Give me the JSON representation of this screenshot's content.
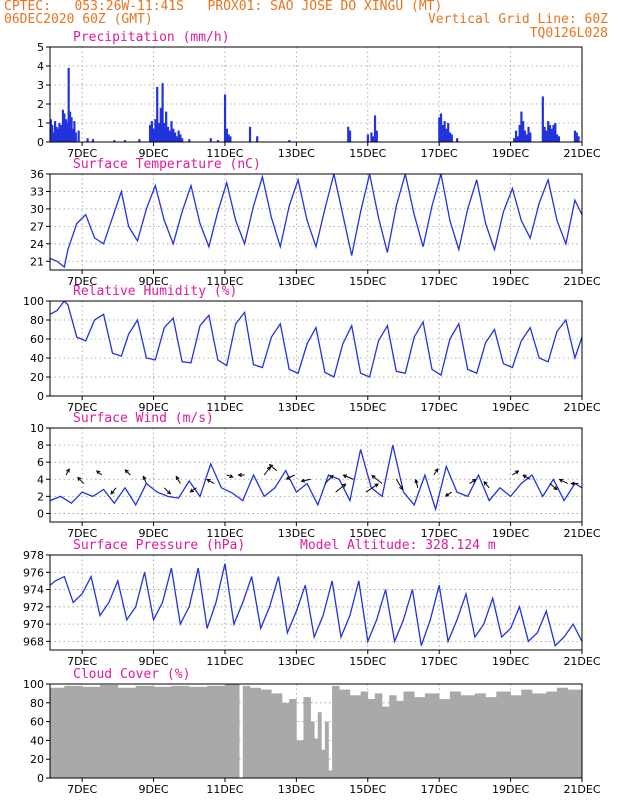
{
  "header": {
    "line1": "CPTEC:   053:26W-11:41S   PROX01: SAO JOSE DO XINGU (MT)",
    "line2_left": "06DEC2020 60Z (GMT)",
    "line2_right": "Vertical Grid Line: 60Z",
    "line3_right": "TQ0126L028"
  },
  "colors": {
    "header": "#e8741e",
    "title": "#e01b9a",
    "series": "#2233dd",
    "cloud": "#a9a9a9",
    "arrow": "#000000",
    "grid": "#9a9a9a"
  },
  "chart_data": [
    {
      "id": "precip",
      "type": "bar",
      "title": "Precipitation (mm/h)",
      "ylim": [
        0,
        5
      ],
      "yticks": [
        0,
        1,
        2,
        3,
        4,
        5
      ],
      "xlim": [
        6.1,
        21.0
      ],
      "xticks": [
        "7DEC",
        "9DEC",
        "11DEC",
        "13DEC",
        "15DEC",
        "17DEC",
        "19DEC",
        "21DEC"
      ],
      "x": [
        6.12,
        6.16,
        6.2,
        6.24,
        6.28,
        6.32,
        6.36,
        6.42,
        6.46,
        6.5,
        6.55,
        6.58,
        6.62,
        6.66,
        6.7,
        6.74,
        6.78,
        6.82,
        6.9,
        7.15,
        7.3,
        7.9,
        8.2,
        8.6,
        8.9,
        8.95,
        9.0,
        9.05,
        9.1,
        9.15,
        9.2,
        9.25,
        9.3,
        9.35,
        9.4,
        9.45,
        9.5,
        9.55,
        9.6,
        9.65,
        9.7,
        9.75,
        9.8,
        10.0,
        10.6,
        10.8,
        11.0,
        11.05,
        11.1,
        11.15,
        11.7,
        11.9,
        12.8,
        14.45,
        14.5,
        15.0,
        15.1,
        15.15,
        15.2,
        15.25,
        17.0,
        17.05,
        17.1,
        17.15,
        17.2,
        17.25,
        17.3,
        17.35,
        17.5,
        19.1,
        19.15,
        19.2,
        19.25,
        19.3,
        19.35,
        19.4,
        19.45,
        19.5,
        19.55,
        19.9,
        19.95,
        20.0,
        20.05,
        20.1,
        20.15,
        20.2,
        20.25,
        20.3,
        20.35,
        20.8,
        20.85,
        20.9
      ],
      "values": [
        1.2,
        0.9,
        0.5,
        1.1,
        0.8,
        0.7,
        1.0,
        0.9,
        1.7,
        1.5,
        1.2,
        1.0,
        3.9,
        1.6,
        1.3,
        0.7,
        1.1,
        0.5,
        0.6,
        0.2,
        0.15,
        0.1,
        0.1,
        0.15,
        0.9,
        1.1,
        0.7,
        1.2,
        2.9,
        1.0,
        1.8,
        3.1,
        1.0,
        1.6,
        0.8,
        0.6,
        1.1,
        0.7,
        0.5,
        0.3,
        0.6,
        0.4,
        0.2,
        0.15,
        0.2,
        0.1,
        2.5,
        0.7,
        0.4,
        0.3,
        0.8,
        0.3,
        0.1,
        0.8,
        0.6,
        0.4,
        0.5,
        0.3,
        1.4,
        0.6,
        1.3,
        1.5,
        0.9,
        1.1,
        0.7,
        1.0,
        0.5,
        0.4,
        0.2,
        0.2,
        0.6,
        0.3,
        0.9,
        1.6,
        1.1,
        0.6,
        0.4,
        0.8,
        0.5,
        2.4,
        0.8,
        0.6,
        1.1,
        0.9,
        0.7,
        0.9,
        1.0,
        0.4,
        0.3,
        0.6,
        0.5,
        0.3
      ]
    },
    {
      "id": "temp",
      "type": "line",
      "title": "Surface Temperature (nC)",
      "ylim": [
        19.5,
        36
      ],
      "yticks": [
        21,
        24,
        27,
        30,
        33,
        36
      ],
      "xlim": [
        6.1,
        21.0
      ],
      "xticks": [
        "7DEC",
        "9DEC",
        "11DEC",
        "13DEC",
        "15DEC",
        "17DEC",
        "19DEC",
        "21DEC"
      ],
      "x": [
        6.1,
        6.3,
        6.5,
        6.6,
        6.85,
        7.1,
        7.35,
        7.6,
        7.85,
        8.1,
        8.3,
        8.55,
        8.8,
        9.05,
        9.3,
        9.55,
        9.8,
        10.05,
        10.3,
        10.55,
        10.8,
        11.05,
        11.3,
        11.55,
        11.8,
        12.05,
        12.3,
        12.55,
        12.8,
        13.05,
        13.3,
        13.55,
        13.8,
        14.05,
        14.3,
        14.55,
        14.8,
        15.05,
        15.3,
        15.55,
        15.8,
        16.05,
        16.3,
        16.55,
        16.8,
        17.05,
        17.3,
        17.55,
        17.8,
        18.05,
        18.3,
        18.55,
        18.8,
        19.05,
        19.3,
        19.55,
        19.8,
        20.05,
        20.3,
        20.55,
        20.8,
        21.0
      ],
      "values": [
        21.5,
        21.0,
        20.0,
        23.0,
        27.5,
        29.0,
        25.0,
        24.0,
        28.5,
        33.0,
        27.0,
        24.5,
        30.0,
        34.0,
        28.0,
        24.0,
        29.5,
        34.0,
        27.5,
        23.5,
        29.5,
        34.5,
        28.0,
        24.0,
        30.5,
        35.5,
        28.5,
        23.5,
        30.5,
        35.0,
        28.0,
        23.5,
        30.0,
        36.0,
        29.0,
        22.0,
        29.5,
        36.0,
        28.5,
        22.5,
        30.5,
        36.0,
        29.0,
        23.5,
        30.5,
        36.0,
        28.0,
        23.0,
        30.0,
        35.0,
        27.5,
        23.0,
        29.5,
        33.5,
        28.0,
        25.0,
        31.0,
        35.0,
        28.0,
        24.0,
        31.5,
        29.0
      ]
    },
    {
      "id": "rh",
      "type": "line",
      "title": "Relative Humidity (%)",
      "ylim": [
        0,
        100
      ],
      "yticks": [
        0,
        20,
        40,
        60,
        80,
        100
      ],
      "xlim": [
        6.1,
        21.0
      ],
      "xticks": [
        "7DEC",
        "9DEC",
        "11DEC",
        "13DEC",
        "15DEC",
        "17DEC",
        "19DEC",
        "21DEC"
      ],
      "x": [
        6.1,
        6.3,
        6.5,
        6.6,
        6.85,
        7.1,
        7.35,
        7.6,
        7.85,
        8.1,
        8.3,
        8.55,
        8.8,
        9.05,
        9.3,
        9.55,
        9.8,
        10.05,
        10.3,
        10.55,
        10.8,
        11.05,
        11.3,
        11.55,
        11.8,
        12.05,
        12.3,
        12.55,
        12.8,
        13.05,
        13.3,
        13.55,
        13.8,
        14.05,
        14.3,
        14.55,
        14.8,
        15.05,
        15.3,
        15.55,
        15.8,
        16.05,
        16.3,
        16.55,
        16.8,
        17.05,
        17.3,
        17.55,
        17.8,
        18.05,
        18.3,
        18.55,
        18.8,
        19.05,
        19.3,
        19.55,
        19.8,
        20.05,
        20.3,
        20.55,
        20.8,
        21.0
      ],
      "values": [
        86,
        90,
        100,
        96,
        62,
        58,
        80,
        86,
        45,
        42,
        65,
        80,
        40,
        38,
        72,
        82,
        36,
        35,
        74,
        85,
        38,
        32,
        76,
        88,
        33,
        30,
        62,
        76,
        28,
        24,
        55,
        72,
        25,
        20,
        55,
        74,
        24,
        20,
        58,
        74,
        26,
        24,
        62,
        78,
        28,
        22,
        60,
        76,
        28,
        24,
        56,
        70,
        34,
        30,
        58,
        72,
        40,
        36,
        68,
        80,
        40,
        62
      ]
    },
    {
      "id": "wind",
      "type": "line",
      "title": "Surface Wind (m/s)",
      "ylim": [
        -1,
        10
      ],
      "yticks": [
        0,
        2,
        4,
        6,
        8,
        10
      ],
      "xlim": [
        6.1,
        21.0
      ],
      "xticks": [
        "7DEC",
        "9DEC",
        "11DEC",
        "13DEC",
        "15DEC",
        "17DEC",
        "19DEC",
        "21DEC"
      ],
      "x": [
        6.1,
        6.4,
        6.7,
        7.0,
        7.3,
        7.6,
        7.9,
        8.2,
        8.5,
        8.8,
        9.1,
        9.4,
        9.7,
        10.0,
        10.3,
        10.6,
        10.9,
        11.2,
        11.5,
        11.8,
        12.1,
        12.4,
        12.7,
        13.0,
        13.3,
        13.6,
        13.9,
        14.2,
        14.5,
        14.8,
        15.1,
        15.4,
        15.7,
        16.0,
        16.3,
        16.6,
        16.9,
        17.2,
        17.5,
        17.8,
        18.1,
        18.4,
        18.7,
        19.0,
        19.3,
        19.6,
        19.9,
        20.2,
        20.5,
        20.8,
        21.0
      ],
      "values": [
        1.5,
        2.0,
        1.2,
        2.5,
        2.0,
        2.8,
        1.2,
        3.0,
        1.0,
        3.5,
        2.5,
        2.0,
        1.8,
        3.8,
        2.0,
        5.8,
        3.0,
        2.4,
        1.5,
        4.5,
        2.0,
        3.0,
        5.0,
        2.5,
        3.5,
        1.0,
        4.5,
        4.0,
        1.5,
        7.5,
        3.0,
        2.0,
        8.0,
        2.5,
        1.0,
        4.5,
        0.5,
        5.5,
        2.5,
        2.0,
        4.5,
        1.5,
        3.0,
        2.0,
        3.5,
        4.5,
        2.0,
        4.0,
        1.5,
        3.5,
        3.0
      ],
      "arrows": [
        {
          "x": 6.55,
          "y": 4.5,
          "dx": 3,
          "dy": -6
        },
        {
          "x": 7.05,
          "y": 3.5,
          "dx": -6,
          "dy": -6
        },
        {
          "x": 7.55,
          "y": 4.5,
          "dx": -5,
          "dy": -4
        },
        {
          "x": 7.95,
          "y": 3.0,
          "dx": -5,
          "dy": 6
        },
        {
          "x": 8.35,
          "y": 4.5,
          "dx": -5,
          "dy": -5
        },
        {
          "x": 8.8,
          "y": 3.5,
          "dx": -3,
          "dy": -7
        },
        {
          "x": 9.3,
          "y": 3.0,
          "dx": 6,
          "dy": 6
        },
        {
          "x": 9.75,
          "y": 3.5,
          "dx": -4,
          "dy": -7
        },
        {
          "x": 10.2,
          "y": 3.0,
          "dx": -6,
          "dy": 4
        },
        {
          "x": 10.7,
          "y": 3.5,
          "dx": -7,
          "dy": -4
        },
        {
          "x": 11.05,
          "y": 4.5,
          "dx": 6,
          "dy": 2
        },
        {
          "x": 11.55,
          "y": 4.5,
          "dx": -6,
          "dy": 0
        },
        {
          "x": 12.1,
          "y": 4.5,
          "dx": 6,
          "dy": -8
        },
        {
          "x": 12.45,
          "y": 5.0,
          "dx": -7,
          "dy": -6
        },
        {
          "x": 12.95,
          "y": 4.5,
          "dx": -8,
          "dy": 4
        },
        {
          "x": 13.4,
          "y": 4.0,
          "dx": -9,
          "dy": 2
        },
        {
          "x": 13.8,
          "y": 3.5,
          "dx": 8,
          "dy": -8
        },
        {
          "x": 14.1,
          "y": 2.5,
          "dx": 10,
          "dy": -8
        },
        {
          "x": 14.6,
          "y": 4.0,
          "dx": -10,
          "dy": -4
        },
        {
          "x": 14.95,
          "y": 2.5,
          "dx": 12,
          "dy": -8
        },
        {
          "x": 15.4,
          "y": 3.5,
          "dx": -10,
          "dy": -8
        },
        {
          "x": 15.8,
          "y": 4.0,
          "dx": 6,
          "dy": 10
        },
        {
          "x": 16.4,
          "y": 3.0,
          "dx": -2,
          "dy": -8
        },
        {
          "x": 16.85,
          "y": 4.5,
          "dx": 4,
          "dy": -6
        },
        {
          "x": 17.35,
          "y": 2.5,
          "dx": -6,
          "dy": 4
        },
        {
          "x": 17.85,
          "y": 3.5,
          "dx": 6,
          "dy": -4
        },
        {
          "x": 18.4,
          "y": 3.0,
          "dx": -5,
          "dy": -6
        },
        {
          "x": 19.05,
          "y": 4.5,
          "dx": 6,
          "dy": -4
        },
        {
          "x": 19.55,
          "y": 4.0,
          "dx": -7,
          "dy": -4
        },
        {
          "x": 20.1,
          "y": 3.5,
          "dx": 7,
          "dy": 6
        },
        {
          "x": 20.6,
          "y": 3.5,
          "dx": -8,
          "dy": -4
        },
        {
          "x": 20.9,
          "y": 3.5,
          "dx": -7,
          "dy": 0
        }
      ]
    },
    {
      "id": "pres",
      "type": "line",
      "title": "Surface Pressure (hPa)",
      "annotation": "Model Altitude: 328.124 m",
      "ylim": [
        967,
        978
      ],
      "yticks": [
        968,
        970,
        972,
        974,
        976,
        978
      ],
      "xlim": [
        6.1,
        21.0
      ],
      "xticks": [
        "7DEC",
        "9DEC",
        "11DEC",
        "13DEC",
        "15DEC",
        "17DEC",
        "19DEC",
        "21DEC"
      ],
      "x": [
        6.1,
        6.25,
        6.5,
        6.75,
        7.0,
        7.25,
        7.5,
        7.75,
        8.0,
        8.25,
        8.5,
        8.75,
        9.0,
        9.25,
        9.5,
        9.75,
        10.0,
        10.25,
        10.5,
        10.75,
        11.0,
        11.25,
        11.5,
        11.75,
        12.0,
        12.25,
        12.5,
        12.75,
        13.0,
        13.25,
        13.5,
        13.75,
        14.0,
        14.25,
        14.5,
        14.75,
        15.0,
        15.25,
        15.5,
        15.75,
        16.0,
        16.25,
        16.5,
        16.75,
        17.0,
        17.25,
        17.5,
        17.75,
        18.0,
        18.25,
        18.5,
        18.75,
        19.0,
        19.25,
        19.5,
        19.75,
        20.0,
        20.25,
        20.5,
        20.75,
        21.0
      ],
      "values": [
        974.5,
        975.0,
        975.5,
        972.5,
        973.5,
        975.5,
        971.0,
        972.5,
        975.0,
        970.5,
        972.0,
        976.0,
        970.5,
        972.5,
        976.5,
        970.0,
        972.0,
        976.5,
        969.5,
        972.5,
        977.0,
        970.0,
        972.5,
        975.5,
        969.5,
        972.0,
        975.5,
        969.0,
        971.5,
        974.5,
        968.5,
        971.0,
        975.0,
        968.5,
        971.0,
        975.0,
        968.0,
        970.5,
        974.0,
        968.0,
        970.5,
        974.0,
        967.5,
        970.5,
        974.5,
        968.0,
        970.5,
        973.5,
        968.5,
        970.0,
        973.0,
        968.5,
        969.5,
        972.0,
        968.0,
        969.0,
        971.5,
        967.5,
        968.5,
        970.0,
        968.0
      ]
    },
    {
      "id": "cloud",
      "type": "area",
      "title": "Cloud Cover (%)",
      "ylim": [
        0,
        100
      ],
      "yticks": [
        0,
        20,
        40,
        60,
        80,
        100
      ],
      "xlim": [
        6.1,
        21.0
      ],
      "xticks": [
        "7DEC",
        "9DEC",
        "11DEC",
        "13DEC",
        "15DEC",
        "17DEC",
        "19DEC",
        "21DEC"
      ],
      "x": [
        6.1,
        6.5,
        7.0,
        7.5,
        8.0,
        8.5,
        9.0,
        9.5,
        10.0,
        10.5,
        11.0,
        11.2,
        11.4,
        11.5,
        11.7,
        12.0,
        12.3,
        12.6,
        12.8,
        13.0,
        13.2,
        13.4,
        13.5,
        13.6,
        13.7,
        13.8,
        13.9,
        14.0,
        14.2,
        14.5,
        14.8,
        15.0,
        15.2,
        15.4,
        15.6,
        15.8,
        16.0,
        16.3,
        16.6,
        17.0,
        17.3,
        17.6,
        18.0,
        18.3,
        18.6,
        19.0,
        19.3,
        19.6,
        20.0,
        20.3,
        20.6,
        21.0
      ],
      "values": [
        96,
        98,
        97,
        99,
        96,
        98,
        97,
        98,
        97,
        98,
        100,
        100,
        0,
        98,
        96,
        94,
        90,
        80,
        84,
        40,
        86,
        60,
        42,
        70,
        30,
        60,
        8,
        98,
        94,
        88,
        92,
        84,
        90,
        76,
        88,
        82,
        92,
        86,
        90,
        84,
        92,
        88,
        90,
        86,
        92,
        88,
        94,
        90,
        92,
        96,
        94,
        92
      ]
    }
  ]
}
